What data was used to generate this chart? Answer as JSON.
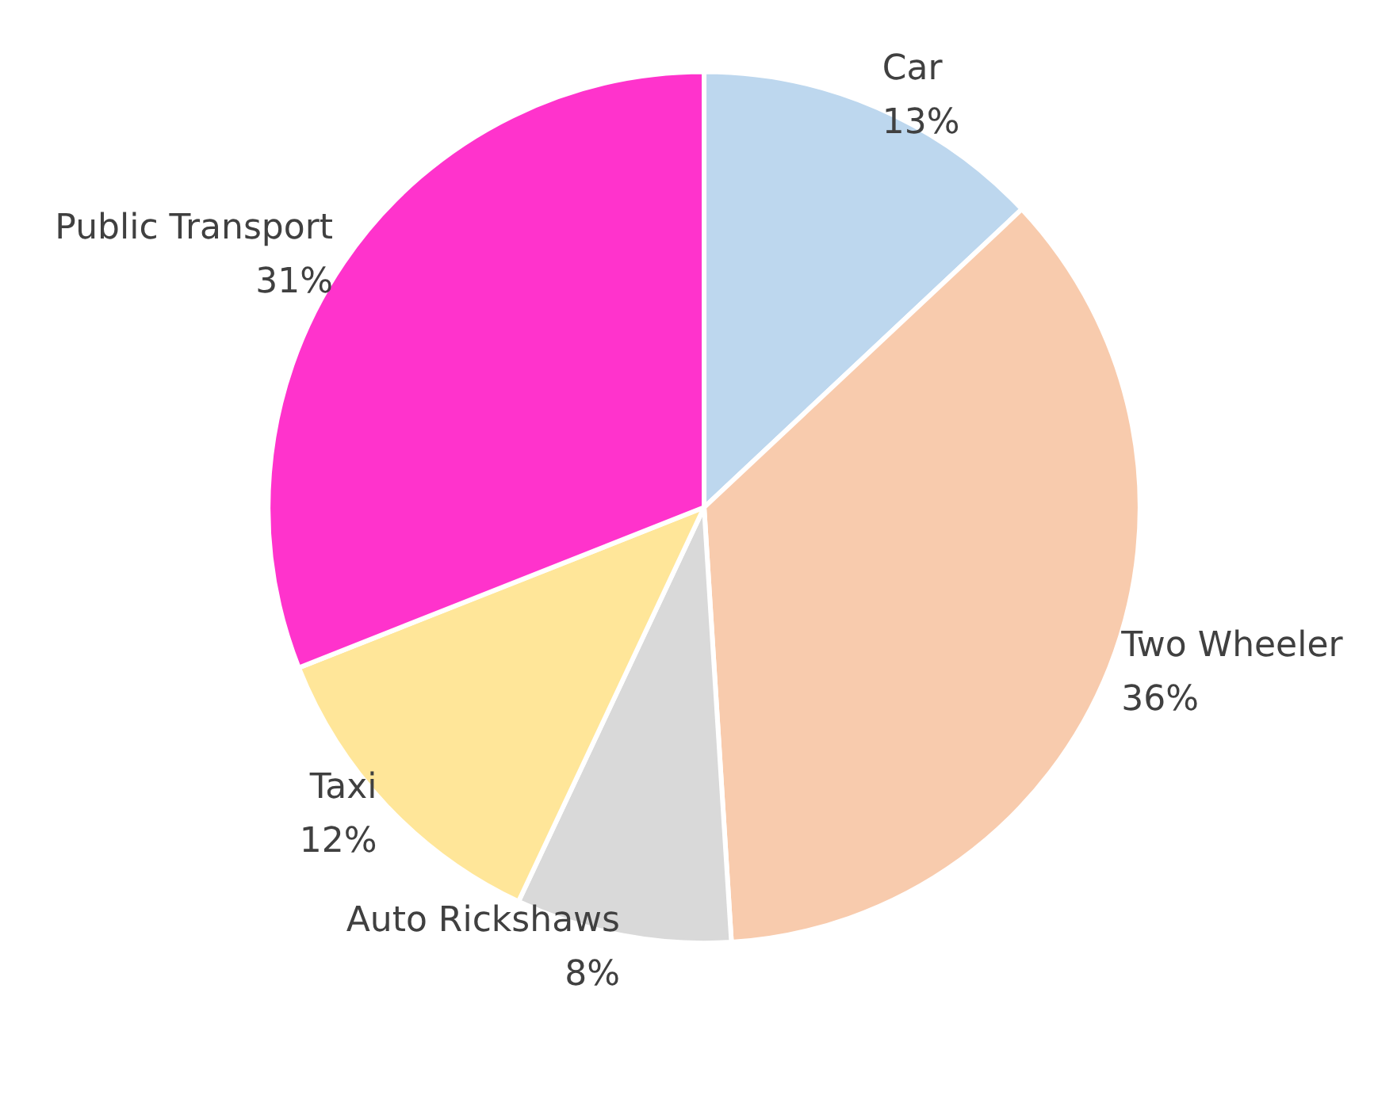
{
  "chart_data": {
    "type": "pie",
    "categories": [
      "Car",
      "Two Wheeler",
      "Auto Rickshaws",
      "Taxi",
      "Public Transport"
    ],
    "values": [
      13,
      36,
      8,
      12,
      31
    ],
    "colors": [
      "#bdd7ee",
      "#f8cbad",
      "#d9d9d9",
      "#ffe699",
      "#ff33cc"
    ],
    "value_labels": [
      "13%",
      "36%",
      "8%",
      "12%",
      "31%"
    ],
    "legend": false
  }
}
